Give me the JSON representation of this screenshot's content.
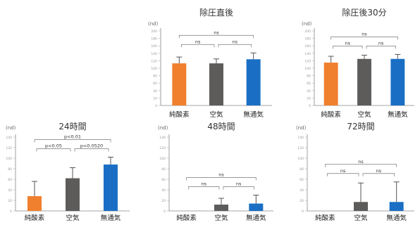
{
  "chart_data": [
    {
      "type": "bar",
      "title": "除圧直後",
      "unit_label": "(nd)",
      "categories": [
        "純酸素",
        "空気",
        "無通気"
      ],
      "colors": [
        "#f07f2e",
        "#5e5b5b",
        "#1a6fc4"
      ],
      "values": [
        113,
        113,
        124
      ],
      "errors": [
        17,
        12,
        17
      ],
      "ylim": [
        0,
        200
      ],
      "yticks": [
        0,
        20,
        40,
        60,
        80,
        100,
        120,
        140,
        160,
        180,
        200
      ],
      "annotations": [
        {
          "from": 0,
          "to": 1,
          "text": "ns"
        },
        {
          "from": 1,
          "to": 2,
          "text": "ns"
        },
        {
          "from": 0,
          "to": 2,
          "text": "ns"
        }
      ]
    },
    {
      "type": "bar",
      "title": "除圧後30分",
      "unit_label": "(nd)",
      "categories": [
        "純酸素",
        "空気",
        "無通気"
      ],
      "colors": [
        "#f07f2e",
        "#5e5b5b",
        "#1a6fc4"
      ],
      "values": [
        115,
        125,
        125
      ],
      "errors": [
        17,
        10,
        12
      ],
      "ylim": [
        0,
        200
      ],
      "yticks": [
        0,
        20,
        40,
        60,
        80,
        100,
        120,
        140,
        160,
        180,
        200
      ],
      "annotations": [
        {
          "from": 0,
          "to": 1,
          "text": "ns"
        },
        {
          "from": 1,
          "to": 2,
          "text": "ns"
        },
        {
          "from": 0,
          "to": 2,
          "text": "ns"
        }
      ]
    },
    {
      "type": "bar",
      "title": "24時間",
      "unit_label": "(nd)",
      "categories": [
        "純酸素",
        "空気",
        "無通気"
      ],
      "colors": [
        "#f07f2e",
        "#5e5b5b",
        "#1a6fc4"
      ],
      "values": [
        28,
        62,
        88
      ],
      "errors": [
        28,
        20,
        14
      ],
      "ylim": [
        0,
        140
      ],
      "yticks": [
        0,
        20,
        40,
        60,
        80,
        100,
        120,
        140
      ],
      "annotations": [
        {
          "from": 0,
          "to": 1,
          "text": "p<0.05"
        },
        {
          "from": 1,
          "to": 2,
          "text": "p<0.0520"
        },
        {
          "from": 0,
          "to": 2,
          "text": "p<0.01"
        }
      ]
    },
    {
      "type": "bar",
      "title": "48時間",
      "unit_label": "(nd)",
      "categories": [
        "純酸素",
        "空気",
        "無通気"
      ],
      "colors": [
        "#f07f2e",
        "#5e5b5b",
        "#1a6fc4"
      ],
      "values": [
        0,
        12,
        14
      ],
      "errors": [
        0,
        12,
        16
      ],
      "ylim": [
        0,
        140
      ],
      "yticks": [
        0,
        20,
        40,
        60,
        80,
        100,
        120,
        140
      ],
      "annotations": [
        {
          "from": 0,
          "to": 1,
          "text": "ns"
        },
        {
          "from": 1,
          "to": 2,
          "text": "ns"
        },
        {
          "from": 0,
          "to": 2,
          "text": "ns"
        }
      ]
    },
    {
      "type": "bar",
      "title": "72時間",
      "unit_label": "(nd)",
      "categories": [
        "純酸素",
        "空気",
        "無通気"
      ],
      "colors": [
        "#f07f2e",
        "#5e5b5b",
        "#1a6fc4"
      ],
      "values": [
        0,
        17,
        17
      ],
      "errors": [
        0,
        36,
        38
      ],
      "ylim": [
        0,
        140
      ],
      "yticks": [
        0,
        20,
        40,
        60,
        80,
        100,
        120,
        140
      ],
      "annotations": [
        {
          "from": 0,
          "to": 1,
          "text": "ns"
        },
        {
          "from": 1,
          "to": 2,
          "text": "ns"
        },
        {
          "from": 0,
          "to": 2,
          "text": "ns"
        }
      ]
    }
  ]
}
